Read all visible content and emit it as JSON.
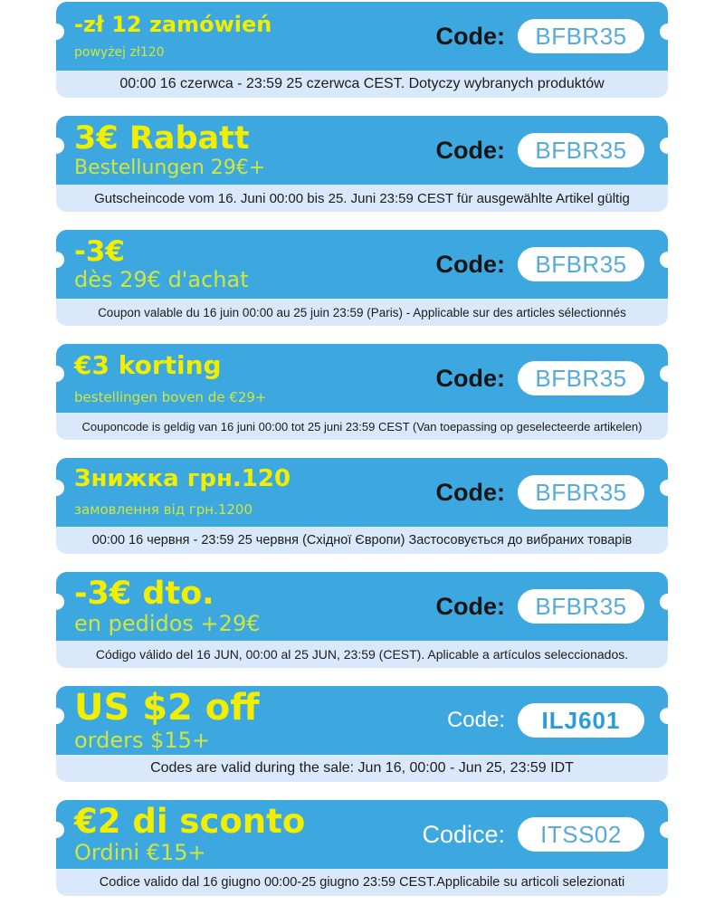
{
  "colors": {
    "card_blue": "#3DA8E0",
    "footer_bg": "#D9E8FB",
    "title_yellow": "#F2EE00",
    "subtitle_yellow": "#CEE63E",
    "code_label_dark": "#151515",
    "code_label_light": "#FFFFFF",
    "code_text_blue": "#55AADE",
    "code_text_bold_blue": "#2B9CDA",
    "footer_text": "#1C1C1C",
    "page_bg": "#FFFFFF"
  },
  "coupons": [
    {
      "title": "-zł 12 zamówień",
      "subtitle": "powyżej zł120",
      "code_label": "Code:",
      "code": "BFBR35",
      "validity": "00:00 16 czerwca - 23:59 25 czerwca CEST. Dotyczy wybranych produktów"
    },
    {
      "title": "3€ Rabatt",
      "subtitle": "Bestellungen 29€+",
      "code_label": "Code:",
      "code": "BFBR35",
      "validity": "Gutscheincode vom 16. Juni 00:00 bis 25. Juni 23:59 CEST für ausgewählte Artikel gültig"
    },
    {
      "title": "-3€",
      "subtitle": "dès 29€ d'achat",
      "code_label": "Code:",
      "code": "BFBR35",
      "validity": "Coupon valable du 16 juin 00:00 au 25 juin 23:59 (Paris) - Applicable sur des articles sélectionnés"
    },
    {
      "title": "€3 korting",
      "subtitle": "bestellingen boven de €29+",
      "code_label": "Code:",
      "code": "BFBR35",
      "validity": "Couponcode is geldig van 16 juni 00:00 tot 25 juni 23:59 CEST (Van toepassing op geselecteerde artikelen)"
    },
    {
      "title": "Знижка грн.120",
      "subtitle": "замовлення від грн.1200",
      "code_label": "Code:",
      "code": "BFBR35",
      "validity": "00:00 16 червня - 23:59 25 червня (Східної Європи) Застосовується до вибраних товарів"
    },
    {
      "title": "-3€ dto.",
      "subtitle": "en pedidos +29€",
      "code_label": "Code:",
      "code": "BFBR35",
      "validity": "Código válido del 16 JUN, 00:00 al 25 JUN, 23:59 (CEST). Aplicable a artículos seleccionados."
    },
    {
      "title": "US $2 off",
      "subtitle": "orders $15+",
      "code_label": "Code:",
      "code": "ILJ601",
      "validity": "Codes are valid during the sale: Jun 16, 00:00 - Jun 25, 23:59 IDT"
    },
    {
      "title": "€2 di sconto",
      "subtitle": "Ordini €15+",
      "code_label": "Codice:",
      "code": "ITSS02",
      "validity": "Codice valido dal 16 giugno 00:00-25 giugno 23:59 CEST.Applicabile su articoli selezionati"
    }
  ]
}
